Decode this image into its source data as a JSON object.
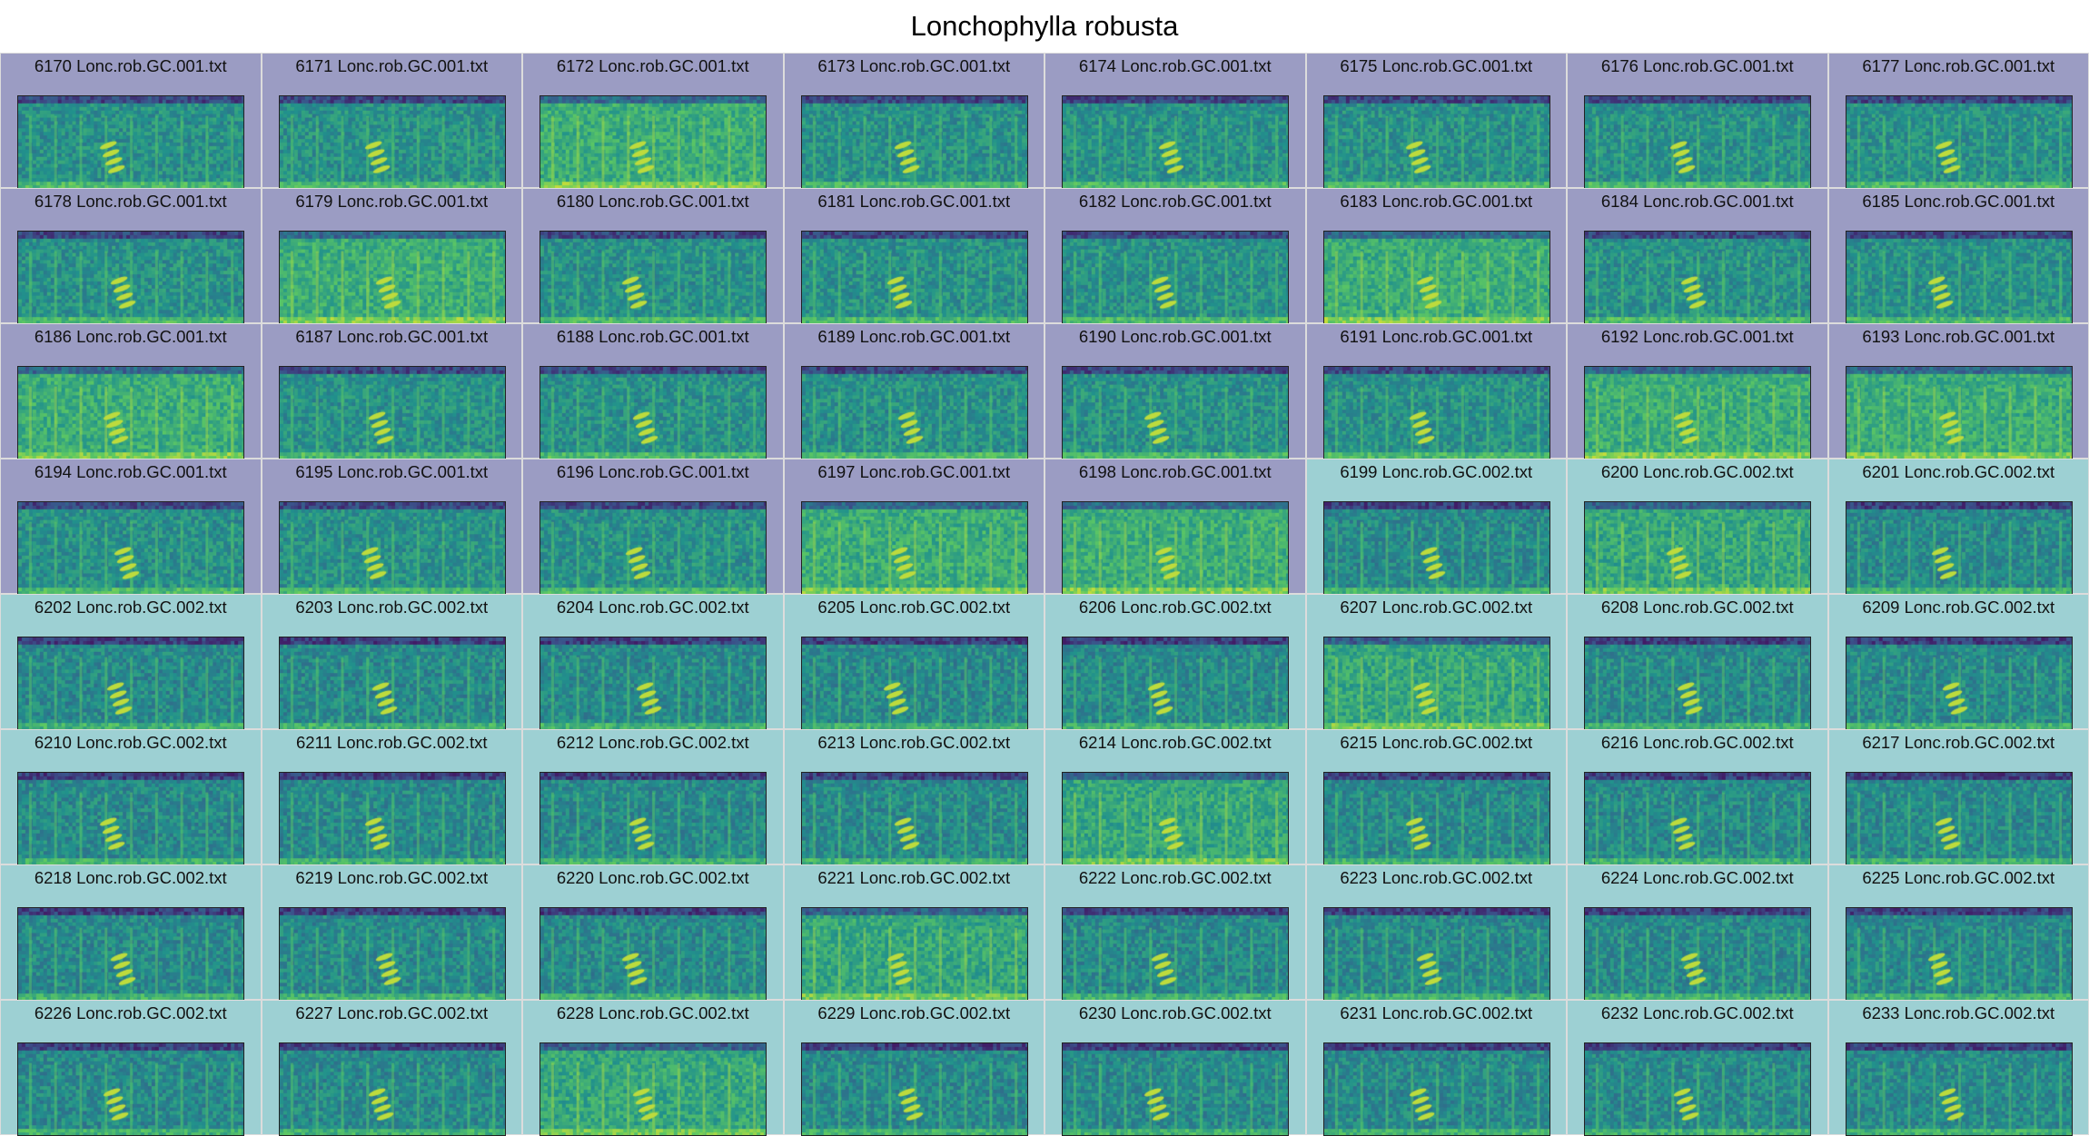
{
  "title": "Lonchophylla robusta",
  "groups": {
    "g1": {
      "color": "#9b9cc3"
    },
    "g2": {
      "color": "#9dd0d3"
    }
  },
  "colormap": [
    "#440154",
    "#3b528b",
    "#21918c",
    "#5ec962",
    "#fde725"
  ],
  "cells": [
    {
      "label": "6170 Lonc.rob.GC.001.txt",
      "group": "g1"
    },
    {
      "label": "6171 Lonc.rob.GC.001.txt",
      "group": "g1"
    },
    {
      "label": "6172 Lonc.rob.GC.001.txt",
      "group": "g1"
    },
    {
      "label": "6173 Lonc.rob.GC.001.txt",
      "group": "g1"
    },
    {
      "label": "6174 Lonc.rob.GC.001.txt",
      "group": "g1"
    },
    {
      "label": "6175 Lonc.rob.GC.001.txt",
      "group": "g1"
    },
    {
      "label": "6176 Lonc.rob.GC.001.txt",
      "group": "g1"
    },
    {
      "label": "6177 Lonc.rob.GC.001.txt",
      "group": "g1"
    },
    {
      "label": "6178 Lonc.rob.GC.001.txt",
      "group": "g1"
    },
    {
      "label": "6179 Lonc.rob.GC.001.txt",
      "group": "g1"
    },
    {
      "label": "6180 Lonc.rob.GC.001.txt",
      "group": "g1"
    },
    {
      "label": "6181 Lonc.rob.GC.001.txt",
      "group": "g1"
    },
    {
      "label": "6182 Lonc.rob.GC.001.txt",
      "group": "g1"
    },
    {
      "label": "6183 Lonc.rob.GC.001.txt",
      "group": "g1"
    },
    {
      "label": "6184 Lonc.rob.GC.001.txt",
      "group": "g1"
    },
    {
      "label": "6185 Lonc.rob.GC.001.txt",
      "group": "g1"
    },
    {
      "label": "6186 Lonc.rob.GC.001.txt",
      "group": "g1"
    },
    {
      "label": "6187 Lonc.rob.GC.001.txt",
      "group": "g1"
    },
    {
      "label": "6188 Lonc.rob.GC.001.txt",
      "group": "g1"
    },
    {
      "label": "6189 Lonc.rob.GC.001.txt",
      "group": "g1"
    },
    {
      "label": "6190 Lonc.rob.GC.001.txt",
      "group": "g1"
    },
    {
      "label": "6191 Lonc.rob.GC.001.txt",
      "group": "g1"
    },
    {
      "label": "6192 Lonc.rob.GC.001.txt",
      "group": "g1"
    },
    {
      "label": "6193 Lonc.rob.GC.001.txt",
      "group": "g1"
    },
    {
      "label": "6194 Lonc.rob.GC.001.txt",
      "group": "g1"
    },
    {
      "label": "6195 Lonc.rob.GC.001.txt",
      "group": "g1"
    },
    {
      "label": "6196 Lonc.rob.GC.001.txt",
      "group": "g1"
    },
    {
      "label": "6197 Lonc.rob.GC.001.txt",
      "group": "g1"
    },
    {
      "label": "6198 Lonc.rob.GC.001.txt",
      "group": "g1"
    },
    {
      "label": "6199 Lonc.rob.GC.002.txt",
      "group": "g2"
    },
    {
      "label": "6200 Lonc.rob.GC.002.txt",
      "group": "g2"
    },
    {
      "label": "6201 Lonc.rob.GC.002.txt",
      "group": "g2"
    },
    {
      "label": "6202 Lonc.rob.GC.002.txt",
      "group": "g2"
    },
    {
      "label": "6203 Lonc.rob.GC.002.txt",
      "group": "g2"
    },
    {
      "label": "6204 Lonc.rob.GC.002.txt",
      "group": "g2"
    },
    {
      "label": "6205 Lonc.rob.GC.002.txt",
      "group": "g2"
    },
    {
      "label": "6206 Lonc.rob.GC.002.txt",
      "group": "g2"
    },
    {
      "label": "6207 Lonc.rob.GC.002.txt",
      "group": "g2"
    },
    {
      "label": "6208 Lonc.rob.GC.002.txt",
      "group": "g2"
    },
    {
      "label": "6209 Lonc.rob.GC.002.txt",
      "group": "g2"
    },
    {
      "label": "6210 Lonc.rob.GC.002.txt",
      "group": "g2"
    },
    {
      "label": "6211 Lonc.rob.GC.002.txt",
      "group": "g2"
    },
    {
      "label": "6212 Lonc.rob.GC.002.txt",
      "group": "g2"
    },
    {
      "label": "6213 Lonc.rob.GC.002.txt",
      "group": "g2"
    },
    {
      "label": "6214 Lonc.rob.GC.002.txt",
      "group": "g2"
    },
    {
      "label": "6215 Lonc.rob.GC.002.txt",
      "group": "g2"
    },
    {
      "label": "6216 Lonc.rob.GC.002.txt",
      "group": "g2"
    },
    {
      "label": "6217 Lonc.rob.GC.002.txt",
      "group": "g2"
    },
    {
      "label": "6218 Lonc.rob.GC.002.txt",
      "group": "g2"
    },
    {
      "label": "6219 Lonc.rob.GC.002.txt",
      "group": "g2"
    },
    {
      "label": "6220 Lonc.rob.GC.002.txt",
      "group": "g2"
    },
    {
      "label": "6221 Lonc.rob.GC.002.txt",
      "group": "g2"
    },
    {
      "label": "6222 Lonc.rob.GC.002.txt",
      "group": "g2"
    },
    {
      "label": "6223 Lonc.rob.GC.002.txt",
      "group": "g2"
    },
    {
      "label": "6224 Lonc.rob.GC.002.txt",
      "group": "g2"
    },
    {
      "label": "6225 Lonc.rob.GC.002.txt",
      "group": "g2"
    },
    {
      "label": "6226 Lonc.rob.GC.002.txt",
      "group": "g2"
    },
    {
      "label": "6227 Lonc.rob.GC.002.txt",
      "group": "g2"
    },
    {
      "label": "6228 Lonc.rob.GC.002.txt",
      "group": "g2"
    },
    {
      "label": "6229 Lonc.rob.GC.002.txt",
      "group": "g2"
    },
    {
      "label": "6230 Lonc.rob.GC.002.txt",
      "group": "g2"
    },
    {
      "label": "6231 Lonc.rob.GC.002.txt",
      "group": "g2"
    },
    {
      "label": "6232 Lonc.rob.GC.002.txt",
      "group": "g2"
    },
    {
      "label": "6233 Lonc.rob.GC.002.txt",
      "group": "g2"
    }
  ]
}
